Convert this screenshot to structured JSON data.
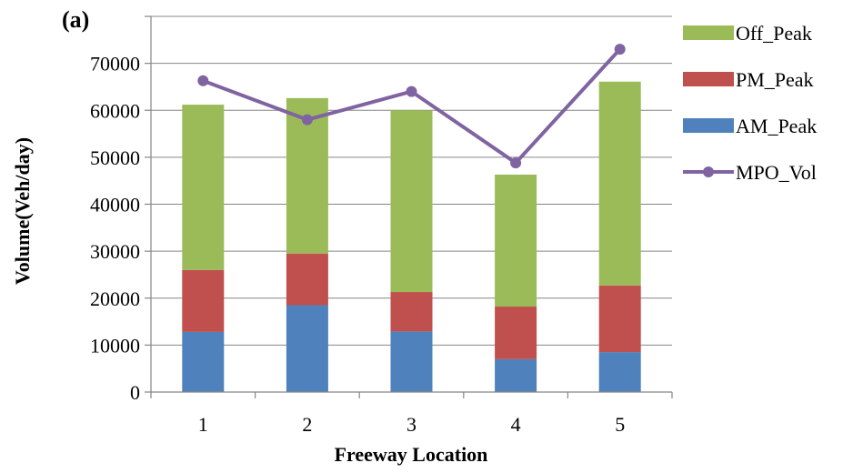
{
  "chart_data": {
    "type": "bar",
    "stacked": true,
    "panel_label": "(a)",
    "title": "",
    "xlabel": "Freeway Location",
    "ylabel": "Volume(Veh/day)",
    "categories": [
      "1",
      "2",
      "3",
      "4",
      "5"
    ],
    "ylim": [
      0,
      80000
    ],
    "yticks": [
      0,
      10000,
      20000,
      30000,
      40000,
      50000,
      60000,
      70000
    ],
    "grid": "horizontal",
    "legend_position": "right",
    "series": [
      {
        "name": "AM_Peak",
        "kind": "bar",
        "color": "#4F81BD",
        "values": [
          12800,
          18500,
          12900,
          7000,
          8500
        ]
      },
      {
        "name": "PM_Peak",
        "kind": "bar",
        "color": "#C0504D",
        "values": [
          13200,
          11000,
          8400,
          11200,
          14200
        ]
      },
      {
        "name": "Off_Peak",
        "kind": "bar",
        "color": "#9BBB59",
        "values": [
          35200,
          33100,
          38700,
          28100,
          43400
        ]
      },
      {
        "name": "MPO_Vol",
        "kind": "line",
        "color": "#8064A2",
        "values": [
          66300,
          58000,
          64000,
          48800,
          73000
        ]
      }
    ],
    "legend_order": [
      "Off_Peak",
      "PM_Peak",
      "AM_Peak",
      "MPO_Vol"
    ]
  }
}
